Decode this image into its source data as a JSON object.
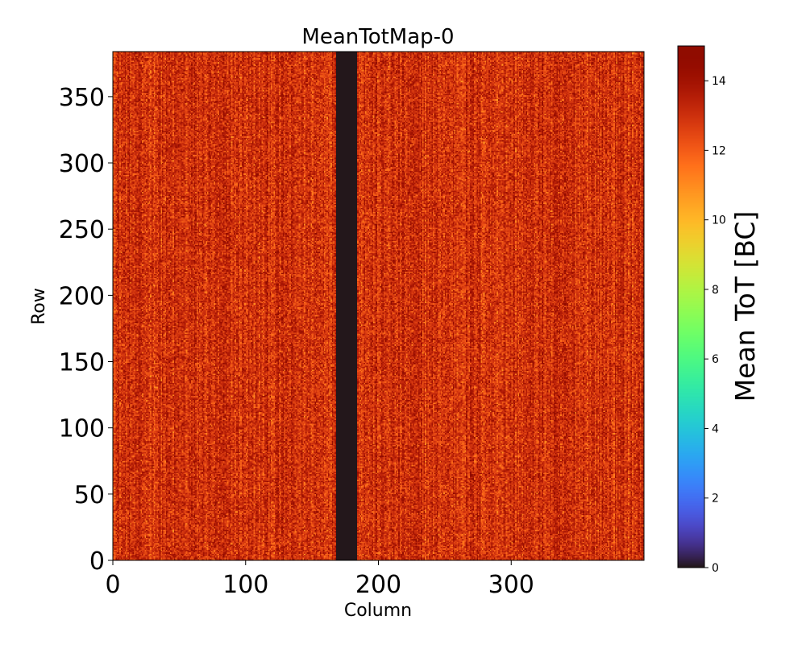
{
  "chart_data": {
    "type": "heatmap",
    "title": "MeanTotMap-0",
    "xlabel": "Column",
    "ylabel": "Row",
    "xlim": [
      0,
      400
    ],
    "ylim": [
      0,
      384
    ],
    "x_ticks": [
      0,
      100,
      200,
      300
    ],
    "y_ticks": [
      0,
      50,
      100,
      150,
      200,
      250,
      300,
      350
    ],
    "x_tick_labels": [
      "0",
      "100",
      "200",
      "300"
    ],
    "y_tick_labels": [
      "0",
      "50",
      "100",
      "150",
      "200",
      "250",
      "300",
      "350"
    ],
    "colorbar": {
      "label": "Mean ToT [BC]",
      "range": [
        0,
        15
      ],
      "ticks": [
        0,
        2,
        4,
        6,
        8,
        10,
        12,
        14
      ],
      "tick_labels": [
        "0",
        "2",
        "4",
        "6",
        "8",
        "10",
        "12",
        "14"
      ],
      "colormap": "turbo"
    },
    "typical_value_range": [
      11,
      15
    ],
    "dead_column_range": [
      168,
      184
    ],
    "dead_column_value": 0
  }
}
